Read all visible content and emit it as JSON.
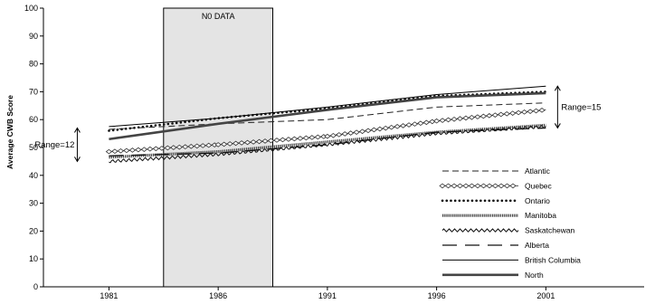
{
  "chart_data": {
    "type": "line",
    "title": "",
    "xlabel": "",
    "ylabel": "Average CWB Score",
    "xlim": [
      1978,
      2005.5
    ],
    "ylim": [
      0,
      100
    ],
    "x_ticks": [
      "1981",
      "1986",
      "1991",
      "1996",
      "2001"
    ],
    "y_ticks": [
      "0",
      "10",
      "20",
      "30",
      "40",
      "50",
      "60",
      "70",
      "80",
      "90",
      "100"
    ],
    "grid": false,
    "legend_position": "bottom-right",
    "x": [
      1981,
      1986,
      1991,
      1996,
      2001
    ],
    "series": [
      {
        "name": "Atlantic",
        "values": [
          56.5,
          58.5,
          60.0,
          64.5,
          66.0
        ]
      },
      {
        "name": "Quebec",
        "values": [
          48.5,
          51.0,
          54.0,
          59.5,
          63.5
        ]
      },
      {
        "name": "Ontario",
        "values": [
          56.0,
          60.5,
          64.0,
          68.5,
          70.0
        ]
      },
      {
        "name": "Manitoba",
        "values": [
          46.5,
          48.5,
          52.0,
          55.5,
          58.0
        ]
      },
      {
        "name": "Saskatchewan",
        "values": [
          45.0,
          47.5,
          51.0,
          55.0,
          57.5
        ]
      },
      {
        "name": "Alberta",
        "values": [
          47.0,
          48.0,
          51.0,
          55.5,
          57.0
        ]
      },
      {
        "name": "British Columbia",
        "values": [
          57.5,
          60.5,
          64.5,
          69.0,
          72.0
        ]
      },
      {
        "name": "North",
        "values": [
          53.0,
          58.5,
          63.5,
          68.0,
          69.5
        ]
      }
    ],
    "shaded_region": {
      "label": "N0 DATA",
      "x_start": 1983.5,
      "x_end": 1988.5,
      "color": "#e4e4e4"
    },
    "annotations": [
      {
        "text": "Range=12",
        "x": 1981,
        "y_from": 45,
        "y_to": 57
      },
      {
        "text": "Range=15",
        "x": 2001,
        "y_from": 57,
        "y_to": 72
      }
    ]
  }
}
